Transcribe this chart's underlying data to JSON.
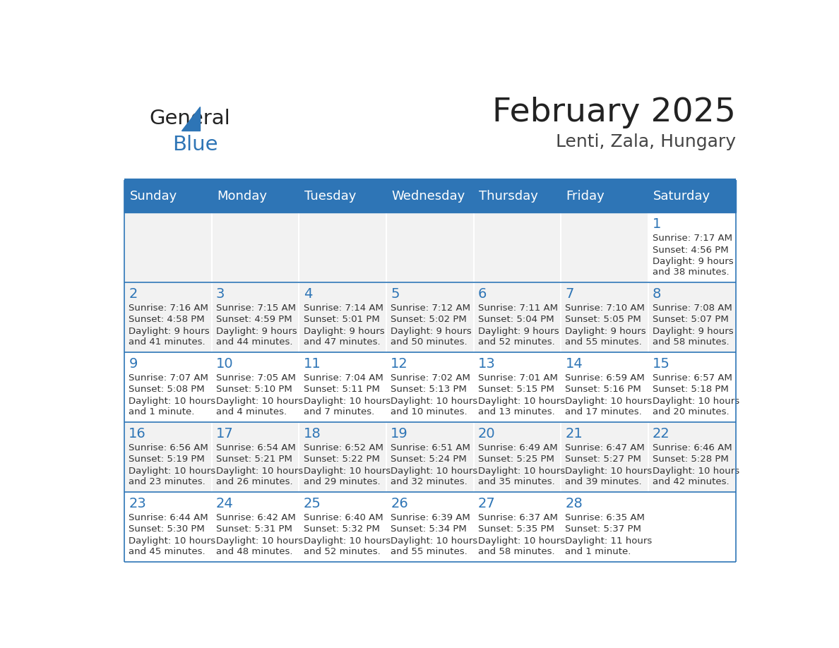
{
  "title": "February 2025",
  "subtitle": "Lenti, Zala, Hungary",
  "days_of_week": [
    "Sunday",
    "Monday",
    "Tuesday",
    "Wednesday",
    "Thursday",
    "Friday",
    "Saturday"
  ],
  "header_bg": "#2E75B6",
  "header_text_color": "#FFFFFF",
  "cell_bg_normal": "#FFFFFF",
  "cell_bg_alt": "#F2F2F2",
  "border_color": "#2E75B6",
  "day_number_color": "#2E75B6",
  "info_text_color": "#333333",
  "title_color": "#222222",
  "subtitle_color": "#444444",
  "logo_general_color": "#222222",
  "logo_blue_color": "#2E75B6",
  "weeks": [
    [
      {
        "day": null,
        "sunrise": null,
        "sunset": null,
        "daylight": null
      },
      {
        "day": null,
        "sunrise": null,
        "sunset": null,
        "daylight": null
      },
      {
        "day": null,
        "sunrise": null,
        "sunset": null,
        "daylight": null
      },
      {
        "day": null,
        "sunrise": null,
        "sunset": null,
        "daylight": null
      },
      {
        "day": null,
        "sunrise": null,
        "sunset": null,
        "daylight": null
      },
      {
        "day": null,
        "sunrise": null,
        "sunset": null,
        "daylight": null
      },
      {
        "day": 1,
        "sunrise": "7:17 AM",
        "sunset": "4:56 PM",
        "daylight": "9 hours\nand 38 minutes."
      }
    ],
    [
      {
        "day": 2,
        "sunrise": "7:16 AM",
        "sunset": "4:58 PM",
        "daylight": "9 hours\nand 41 minutes."
      },
      {
        "day": 3,
        "sunrise": "7:15 AM",
        "sunset": "4:59 PM",
        "daylight": "9 hours\nand 44 minutes."
      },
      {
        "day": 4,
        "sunrise": "7:14 AM",
        "sunset": "5:01 PM",
        "daylight": "9 hours\nand 47 minutes."
      },
      {
        "day": 5,
        "sunrise": "7:12 AM",
        "sunset": "5:02 PM",
        "daylight": "9 hours\nand 50 minutes."
      },
      {
        "day": 6,
        "sunrise": "7:11 AM",
        "sunset": "5:04 PM",
        "daylight": "9 hours\nand 52 minutes."
      },
      {
        "day": 7,
        "sunrise": "7:10 AM",
        "sunset": "5:05 PM",
        "daylight": "9 hours\nand 55 minutes."
      },
      {
        "day": 8,
        "sunrise": "7:08 AM",
        "sunset": "5:07 PM",
        "daylight": "9 hours\nand 58 minutes."
      }
    ],
    [
      {
        "day": 9,
        "sunrise": "7:07 AM",
        "sunset": "5:08 PM",
        "daylight": "10 hours\nand 1 minute."
      },
      {
        "day": 10,
        "sunrise": "7:05 AM",
        "sunset": "5:10 PM",
        "daylight": "10 hours\nand 4 minutes."
      },
      {
        "day": 11,
        "sunrise": "7:04 AM",
        "sunset": "5:11 PM",
        "daylight": "10 hours\nand 7 minutes."
      },
      {
        "day": 12,
        "sunrise": "7:02 AM",
        "sunset": "5:13 PM",
        "daylight": "10 hours\nand 10 minutes."
      },
      {
        "day": 13,
        "sunrise": "7:01 AM",
        "sunset": "5:15 PM",
        "daylight": "10 hours\nand 13 minutes."
      },
      {
        "day": 14,
        "sunrise": "6:59 AM",
        "sunset": "5:16 PM",
        "daylight": "10 hours\nand 17 minutes."
      },
      {
        "day": 15,
        "sunrise": "6:57 AM",
        "sunset": "5:18 PM",
        "daylight": "10 hours\nand 20 minutes."
      }
    ],
    [
      {
        "day": 16,
        "sunrise": "6:56 AM",
        "sunset": "5:19 PM",
        "daylight": "10 hours\nand 23 minutes."
      },
      {
        "day": 17,
        "sunrise": "6:54 AM",
        "sunset": "5:21 PM",
        "daylight": "10 hours\nand 26 minutes."
      },
      {
        "day": 18,
        "sunrise": "6:52 AM",
        "sunset": "5:22 PM",
        "daylight": "10 hours\nand 29 minutes."
      },
      {
        "day": 19,
        "sunrise": "6:51 AM",
        "sunset": "5:24 PM",
        "daylight": "10 hours\nand 32 minutes."
      },
      {
        "day": 20,
        "sunrise": "6:49 AM",
        "sunset": "5:25 PM",
        "daylight": "10 hours\nand 35 minutes."
      },
      {
        "day": 21,
        "sunrise": "6:47 AM",
        "sunset": "5:27 PM",
        "daylight": "10 hours\nand 39 minutes."
      },
      {
        "day": 22,
        "sunrise": "6:46 AM",
        "sunset": "5:28 PM",
        "daylight": "10 hours\nand 42 minutes."
      }
    ],
    [
      {
        "day": 23,
        "sunrise": "6:44 AM",
        "sunset": "5:30 PM",
        "daylight": "10 hours\nand 45 minutes."
      },
      {
        "day": 24,
        "sunrise": "6:42 AM",
        "sunset": "5:31 PM",
        "daylight": "10 hours\nand 48 minutes."
      },
      {
        "day": 25,
        "sunrise": "6:40 AM",
        "sunset": "5:32 PM",
        "daylight": "10 hours\nand 52 minutes."
      },
      {
        "day": 26,
        "sunrise": "6:39 AM",
        "sunset": "5:34 PM",
        "daylight": "10 hours\nand 55 minutes."
      },
      {
        "day": 27,
        "sunrise": "6:37 AM",
        "sunset": "5:35 PM",
        "daylight": "10 hours\nand 58 minutes."
      },
      {
        "day": 28,
        "sunrise": "6:35 AM",
        "sunset": "5:37 PM",
        "daylight": "11 hours\nand 1 minute."
      },
      {
        "day": null,
        "sunrise": null,
        "sunset": null,
        "daylight": null
      }
    ]
  ]
}
